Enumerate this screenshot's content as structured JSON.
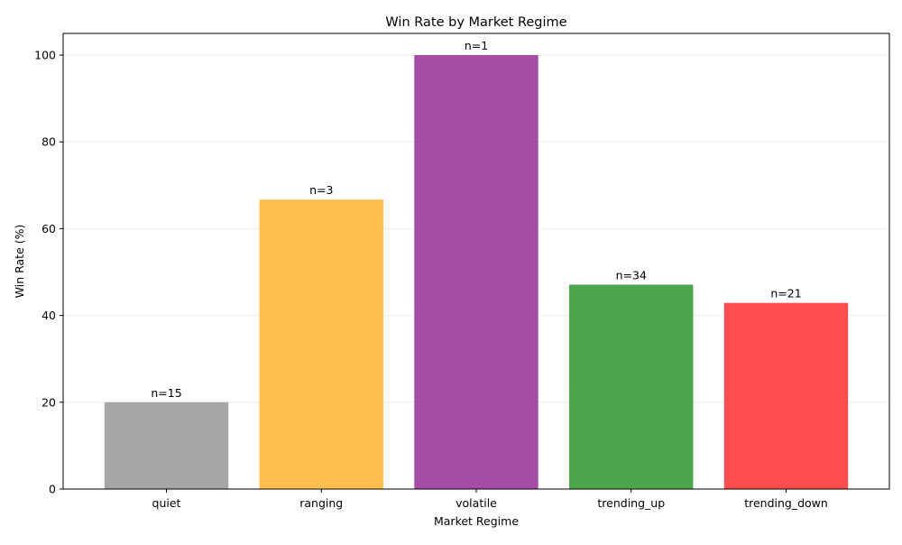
{
  "chart_data": {
    "type": "bar",
    "title": "Win Rate by Market Regime",
    "xlabel": "Market Regime",
    "ylabel": "Win Rate (%)",
    "categories": [
      "quiet",
      "ranging",
      "volatile",
      "trending_up",
      "trending_down"
    ],
    "values": [
      20.0,
      66.7,
      100.0,
      47.1,
      42.9
    ],
    "bar_labels": [
      "n=15",
      "n=3",
      "n=1",
      "n=34",
      "n=21"
    ],
    "bar_colors": [
      "#a6a6a6",
      "#ffbf4f",
      "#a54ca5",
      "#4ca64c",
      "#ff4c4c"
    ],
    "ylim": [
      0,
      105
    ],
    "yticks": [
      0,
      20,
      40,
      60,
      80,
      100
    ],
    "grid": "y-axis",
    "legend": "none"
  }
}
